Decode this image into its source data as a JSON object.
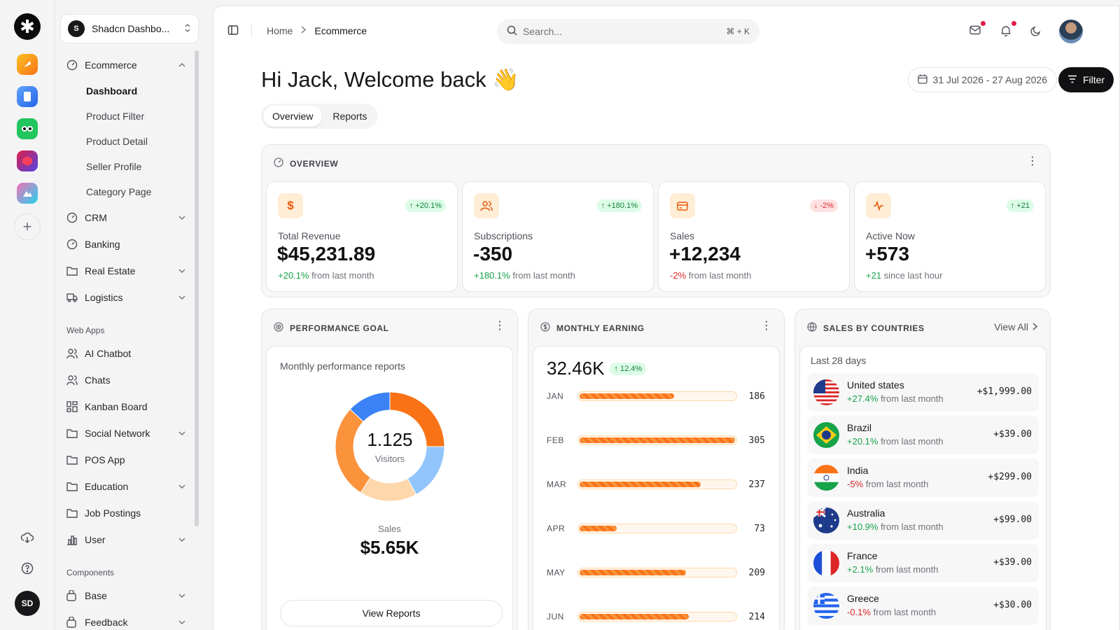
{
  "rail": {
    "logo": "✱",
    "apps": [
      {
        "name": "orange-app-icon",
        "color": "#f59e0b"
      },
      {
        "name": "blue-app-icon",
        "color": "#3b82f6"
      },
      {
        "name": "green-app-icon",
        "color": "#22c55e"
      },
      {
        "name": "purple-app-icon",
        "color": "#7c3aed"
      },
      {
        "name": "gradient-app-icon",
        "color": "#ec4899"
      }
    ],
    "add_label": "+",
    "user_initials": "SD"
  },
  "sidebar": {
    "workspace_initial": "S",
    "workspace_name": "Shadcn Dashbo...",
    "ecommerce": "Ecommerce",
    "sub": [
      "Dashboard",
      "Product Filter",
      "Product Detail",
      "Seller Profile",
      "Category Page"
    ],
    "crm": "CRM",
    "banking": "Banking",
    "real_estate": "Real Estate",
    "logistics": "Logistics",
    "web_apps_label": "Web Apps",
    "ai_chatbot": "AI Chatbot",
    "chats": "Chats",
    "kanban": "Kanban Board",
    "social": "Social Network",
    "pos": "POS App",
    "education": "Education",
    "jobs": "Job Postings",
    "user": "User",
    "components_label": "Components",
    "base": "Base",
    "feedback": "Feedback"
  },
  "topbar": {
    "crumb_home": "Home",
    "crumb_current": "Ecommerce",
    "search_placeholder": "Search...",
    "search_shortcut": "⌘ + K"
  },
  "header": {
    "greeting": "Hi Jack, Welcome back 👋",
    "date_range": "31 Jul 2026 - 27 Aug 2026",
    "filter": "Filter",
    "tab_overview": "Overview",
    "tab_reports": "Reports"
  },
  "overview": {
    "title": "OVERVIEW",
    "cards": [
      {
        "label": "Total Revenue",
        "value": "$45,231.89",
        "trend": "↑ +20.1%",
        "delta": "+20.1%",
        "suffix": " from last month",
        "dir": "up"
      },
      {
        "label": "Subscriptions",
        "value": "-350",
        "trend": "↑ +180.1%",
        "delta": "+180.1%",
        "suffix": " from last month",
        "dir": "up"
      },
      {
        "label": "Sales",
        "value": "+12,234",
        "trend": "↓ -2%",
        "delta": "-2%",
        "suffix": " from last month",
        "dir": "down"
      },
      {
        "label": "Active Now",
        "value": "+573",
        "trend": "↑ +21",
        "delta": "+21",
        "suffix": " since last hour",
        "dir": "up"
      }
    ]
  },
  "performance": {
    "title": "PERFORMANCE GOAL",
    "subtitle": "Monthly performance reports",
    "center_value": "1.125",
    "center_label": "Visitors",
    "sales_label": "Sales",
    "sales_value": "$5.65K",
    "button": "View Reports",
    "segments": [
      {
        "color": "#f97316",
        "value": 25
      },
      {
        "color": "#93c5fd",
        "value": 17
      },
      {
        "color": "#fed7aa",
        "value": 17
      },
      {
        "color": "#fb923c",
        "value": 28
      },
      {
        "color": "#3b82f6",
        "value": 13
      }
    ]
  },
  "earning": {
    "title": "MONTHLY EARNING",
    "total": "32.46K",
    "trend": "↑ 12.4%",
    "months": [
      {
        "m": "JAN",
        "v": 186
      },
      {
        "m": "FEB",
        "v": 305
      },
      {
        "m": "MAR",
        "v": 237
      },
      {
        "m": "APR",
        "v": 73
      },
      {
        "m": "MAY",
        "v": 209
      },
      {
        "m": "JUN",
        "v": 214
      }
    ],
    "max": 305
  },
  "countries": {
    "title": "SALES BY COUNTRIES",
    "view_all": "View All",
    "subtitle": "Last 28 days",
    "rows": [
      {
        "name": "United states",
        "delta": "+27.4%",
        "suffix": " from last month",
        "amount": "+$1,999.00",
        "dir": "up",
        "flag": "us"
      },
      {
        "name": "Brazil",
        "delta": "+20.1%",
        "suffix": " from last month",
        "amount": "+$39.00",
        "dir": "up",
        "flag": "br"
      },
      {
        "name": "India",
        "delta": "-5%",
        "suffix": " from last month",
        "amount": "+$299.00",
        "dir": "down",
        "flag": "in"
      },
      {
        "name": "Australia",
        "delta": "+10.9%",
        "suffix": " from last month",
        "amount": "+$99.00",
        "dir": "up",
        "flag": "au"
      },
      {
        "name": "France",
        "delta": "+2.1%",
        "suffix": " from last month",
        "amount": "+$39.00",
        "dir": "up",
        "flag": "fr"
      },
      {
        "name": "Greece",
        "delta": "-0.1%",
        "suffix": " from last month",
        "amount": "+$30.00",
        "dir": "down",
        "flag": "gr"
      }
    ]
  }
}
